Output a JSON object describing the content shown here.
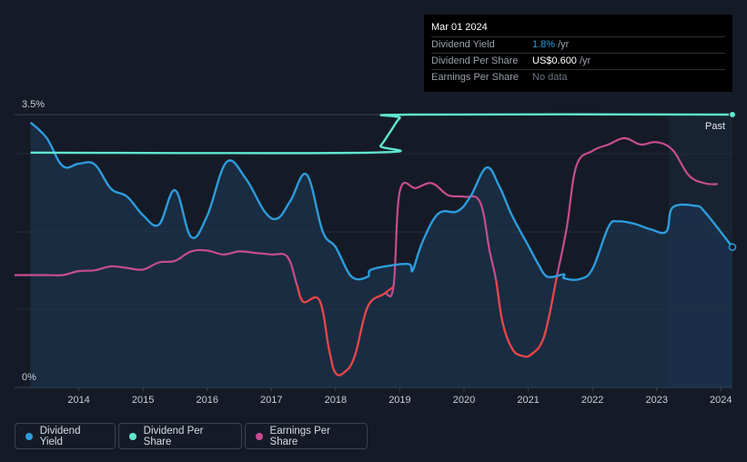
{
  "tooltip": {
    "date": "Mar 01 2024",
    "dividend_yield_label": "Dividend Yield",
    "dividend_yield_value": "1.8%",
    "dividend_yield_unit": "/yr",
    "dps_label": "Dividend Per Share",
    "dps_value": "US$0.600",
    "dps_unit": "/yr",
    "eps_label": "Earnings Per Share",
    "eps_value": "No data"
  },
  "legend": {
    "dividend_yield": "Dividend Yield",
    "dividend_per_share": "Dividend Per Share",
    "earnings_per_share": "Earnings Per Share"
  },
  "colors": {
    "background": "#151b26",
    "dividend_yield": "#2d9cdb",
    "dividend_per_share": "#5fe6cf",
    "eps_positive": "#c64d8f",
    "eps_negative": "#e84545"
  },
  "chart_data": {
    "type": "line",
    "title": "",
    "xlabel": "",
    "ylabel": "",
    "x_ticks": [
      "2014",
      "2015",
      "2016",
      "2017",
      "2018",
      "2019",
      "2020",
      "2021",
      "2022",
      "2023",
      "2024"
    ],
    "y_ticks": [
      "0%",
      "3.5%"
    ],
    "xlim": [
      2013.0,
      2024.18
    ],
    "ylim": [
      0,
      3.5
    ],
    "past_label": "Past",
    "past_region_start": 2023.17,
    "series": [
      {
        "name": "Dividend Yield",
        "unit": "%",
        "points": [
          [
            2013.25,
            3.4
          ],
          [
            2013.5,
            3.2
          ],
          [
            2013.75,
            2.84
          ],
          [
            2014.0,
            2.87
          ],
          [
            2014.25,
            2.86
          ],
          [
            2014.5,
            2.55
          ],
          [
            2014.75,
            2.45
          ],
          [
            2015.0,
            2.21
          ],
          [
            2015.25,
            2.09
          ],
          [
            2015.5,
            2.53
          ],
          [
            2015.75,
            1.93
          ],
          [
            2016.0,
            2.2
          ],
          [
            2016.3,
            2.89
          ],
          [
            2016.6,
            2.68
          ],
          [
            2016.9,
            2.25
          ],
          [
            2017.1,
            2.17
          ],
          [
            2017.3,
            2.4
          ],
          [
            2017.55,
            2.73
          ],
          [
            2017.8,
            2.0
          ],
          [
            2018.0,
            1.8
          ],
          [
            2018.25,
            1.42
          ],
          [
            2018.5,
            1.42
          ],
          [
            2018.55,
            1.51
          ],
          [
            2018.9,
            1.57
          ],
          [
            2019.15,
            1.58
          ],
          [
            2019.2,
            1.5
          ],
          [
            2019.35,
            1.86
          ],
          [
            2019.6,
            2.23
          ],
          [
            2019.9,
            2.26
          ],
          [
            2020.1,
            2.45
          ],
          [
            2020.35,
            2.82
          ],
          [
            2020.55,
            2.58
          ],
          [
            2020.75,
            2.2
          ],
          [
            2021.0,
            1.82
          ],
          [
            2021.15,
            1.59
          ],
          [
            2021.3,
            1.42
          ],
          [
            2021.55,
            1.45
          ],
          [
            2021.56,
            1.4
          ],
          [
            2021.8,
            1.39
          ],
          [
            2022.0,
            1.52
          ],
          [
            2022.25,
            2.06
          ],
          [
            2022.4,
            2.13
          ],
          [
            2022.65,
            2.1
          ],
          [
            2022.9,
            2.03
          ],
          [
            2023.15,
            2.0
          ],
          [
            2023.25,
            2.31
          ],
          [
            2023.6,
            2.33
          ],
          [
            2023.75,
            2.25
          ],
          [
            2024.18,
            1.8
          ]
        ]
      },
      {
        "name": "Dividend Per Share",
        "unit": "US$/yr",
        "points": [
          [
            2013.25,
            0.49
          ],
          [
            2018.55,
            0.49
          ],
          [
            2018.7,
            0.51
          ],
          [
            2018.85,
            0.55
          ],
          [
            2019.0,
            0.59
          ],
          [
            2019.15,
            0.6
          ],
          [
            2024.18,
            0.6
          ]
        ]
      },
      {
        "name": "Earnings Per Share",
        "unit": "US$",
        "points": [
          [
            2013.0,
            1.42
          ],
          [
            2013.5,
            1.42
          ],
          [
            2013.75,
            1.42
          ],
          [
            2014.0,
            1.47
          ],
          [
            2014.25,
            1.48
          ],
          [
            2014.5,
            1.53
          ],
          [
            2014.75,
            1.51
          ],
          [
            2015.0,
            1.49
          ],
          [
            2015.25,
            1.58
          ],
          [
            2015.5,
            1.6
          ],
          [
            2015.75,
            1.72
          ],
          [
            2016.0,
            1.73
          ],
          [
            2016.25,
            1.68
          ],
          [
            2016.5,
            1.72
          ],
          [
            2016.75,
            1.7
          ],
          [
            2017.0,
            1.68
          ],
          [
            2017.25,
            1.65
          ],
          [
            2017.4,
            1.29
          ],
          [
            2017.5,
            1.08
          ],
          [
            2017.75,
            1.1
          ],
          [
            2017.9,
            0.47
          ],
          [
            2018.0,
            0.18
          ],
          [
            2018.15,
            0.2
          ],
          [
            2018.3,
            0.4
          ],
          [
            2018.5,
            1.02
          ],
          [
            2018.75,
            1.18
          ],
          [
            2018.9,
            1.27
          ],
          [
            2019.0,
            2.48
          ],
          [
            2019.25,
            2.52
          ],
          [
            2019.5,
            2.58
          ],
          [
            2019.75,
            2.43
          ],
          [
            2020.0,
            2.41
          ],
          [
            2020.25,
            2.34
          ],
          [
            2020.4,
            1.72
          ],
          [
            2020.5,
            1.35
          ],
          [
            2020.6,
            0.82
          ],
          [
            2020.75,
            0.49
          ],
          [
            2020.9,
            0.4
          ],
          [
            2021.05,
            0.42
          ],
          [
            2021.25,
            0.65
          ],
          [
            2021.45,
            1.42
          ],
          [
            2021.6,
            2.02
          ],
          [
            2021.75,
            2.8
          ],
          [
            2022.0,
            2.99
          ],
          [
            2022.25,
            3.07
          ],
          [
            2022.5,
            3.15
          ],
          [
            2022.75,
            3.07
          ],
          [
            2023.0,
            3.1
          ],
          [
            2023.25,
            3.0
          ],
          [
            2023.5,
            2.68
          ],
          [
            2023.75,
            2.58
          ],
          [
            2023.95,
            2.57
          ]
        ]
      }
    ]
  }
}
